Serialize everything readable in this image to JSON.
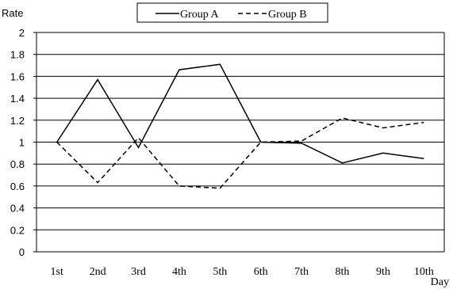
{
  "chart_data": {
    "type": "line",
    "title": "",
    "ylabel": "Rate",
    "xlabel": "Day",
    "categories": [
      "1st",
      "2nd",
      "3rd",
      "4th",
      "5th",
      "6th",
      "7th",
      "8th",
      "9th",
      "10th"
    ],
    "ylim": [
      0,
      2
    ],
    "yticks": [
      "0",
      "0.2",
      "0.4",
      "0.6",
      "0.8",
      "1",
      "1.2",
      "1.4",
      "1.6",
      "1.8",
      "2"
    ],
    "grid": true,
    "legend": "top-center",
    "series": [
      {
        "name": "Group A",
        "style": "solid",
        "color": "#000000",
        "values": [
          1.0,
          1.57,
          0.95,
          1.66,
          1.71,
          1.0,
          0.99,
          0.81,
          0.9,
          0.85
        ]
      },
      {
        "name": "Group B",
        "style": "dashed",
        "color": "#000000",
        "values": [
          1.0,
          0.63,
          1.04,
          0.6,
          0.58,
          1.0,
          1.01,
          1.22,
          1.13,
          1.18
        ]
      }
    ]
  }
}
